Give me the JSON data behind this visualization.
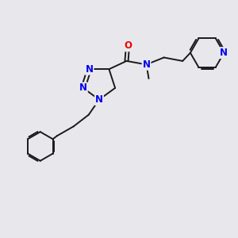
{
  "bg_color": "#e8e8ec",
  "bond_color": "#1a1a1a",
  "bond_width": 1.4,
  "atom_colors": {
    "N": "#0000ee",
    "O": "#ee0000",
    "C": "#1a1a1a"
  },
  "font_size_atom": 8.5,
  "fig_width": 3.0,
  "fig_height": 3.0,
  "dpi": 100
}
